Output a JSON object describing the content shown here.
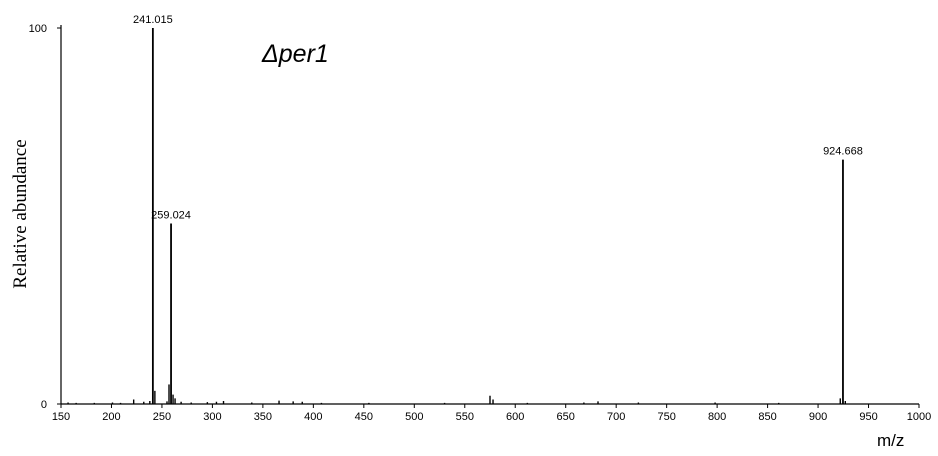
{
  "chart_data": {
    "type": "bar",
    "title": "Δper1",
    "xlabel": "m/z",
    "ylabel": "Relative abundance",
    "xlim": [
      150,
      1000
    ],
    "ylim": [
      0,
      100
    ],
    "x_ticks": [
      "150",
      "200",
      "250",
      "300",
      "350",
      "400",
      "450",
      "500",
      "550",
      "600",
      "650",
      "700",
      "750",
      "800",
      "850",
      "900",
      "950",
      "1000"
    ],
    "y_ticks": [
      "0",
      "100"
    ],
    "grid": false,
    "colors": {
      "peaks": "#000000",
      "axes": "#000000"
    },
    "labeled_peaks": [
      {
        "mz": 241.015,
        "label": "241.015",
        "intensity": 100
      },
      {
        "mz": 259.024,
        "label": "259.024",
        "intensity": 48
      },
      {
        "mz": 924.668,
        "label": "924.668",
        "intensity": 65
      }
    ],
    "minor_peaks": [
      {
        "mz": 157,
        "intensity": 0.4
      },
      {
        "mz": 165,
        "intensity": 0.3
      },
      {
        "mz": 183,
        "intensity": 0.3
      },
      {
        "mz": 201,
        "intensity": 0.4
      },
      {
        "mz": 209,
        "intensity": 0.3
      },
      {
        "mz": 222,
        "intensity": 1.2
      },
      {
        "mz": 232,
        "intensity": 0.6
      },
      {
        "mz": 238,
        "intensity": 0.8
      },
      {
        "mz": 243,
        "intensity": 3.5
      },
      {
        "mz": 255,
        "intensity": 0.7
      },
      {
        "mz": 257,
        "intensity": 5.2
      },
      {
        "mz": 261,
        "intensity": 2.5
      },
      {
        "mz": 263,
        "intensity": 1.5
      },
      {
        "mz": 269,
        "intensity": 0.6
      },
      {
        "mz": 279,
        "intensity": 0.4
      },
      {
        "mz": 295,
        "intensity": 0.5
      },
      {
        "mz": 304,
        "intensity": 0.6
      },
      {
        "mz": 311,
        "intensity": 0.8
      },
      {
        "mz": 339,
        "intensity": 0.4
      },
      {
        "mz": 366,
        "intensity": 0.9
      },
      {
        "mz": 380,
        "intensity": 0.7
      },
      {
        "mz": 389,
        "intensity": 0.6
      },
      {
        "mz": 408,
        "intensity": 0.3
      },
      {
        "mz": 455,
        "intensity": 0.3
      },
      {
        "mz": 530,
        "intensity": 0.3
      },
      {
        "mz": 575,
        "intensity": 2.2
      },
      {
        "mz": 578,
        "intensity": 1.2
      },
      {
        "mz": 612,
        "intensity": 0.3
      },
      {
        "mz": 668,
        "intensity": 0.4
      },
      {
        "mz": 682,
        "intensity": 0.7
      },
      {
        "mz": 722,
        "intensity": 0.4
      },
      {
        "mz": 798,
        "intensity": 0.4
      },
      {
        "mz": 861,
        "intensity": 0.3
      },
      {
        "mz": 922,
        "intensity": 1.5
      },
      {
        "mz": 927,
        "intensity": 0.8
      }
    ]
  }
}
